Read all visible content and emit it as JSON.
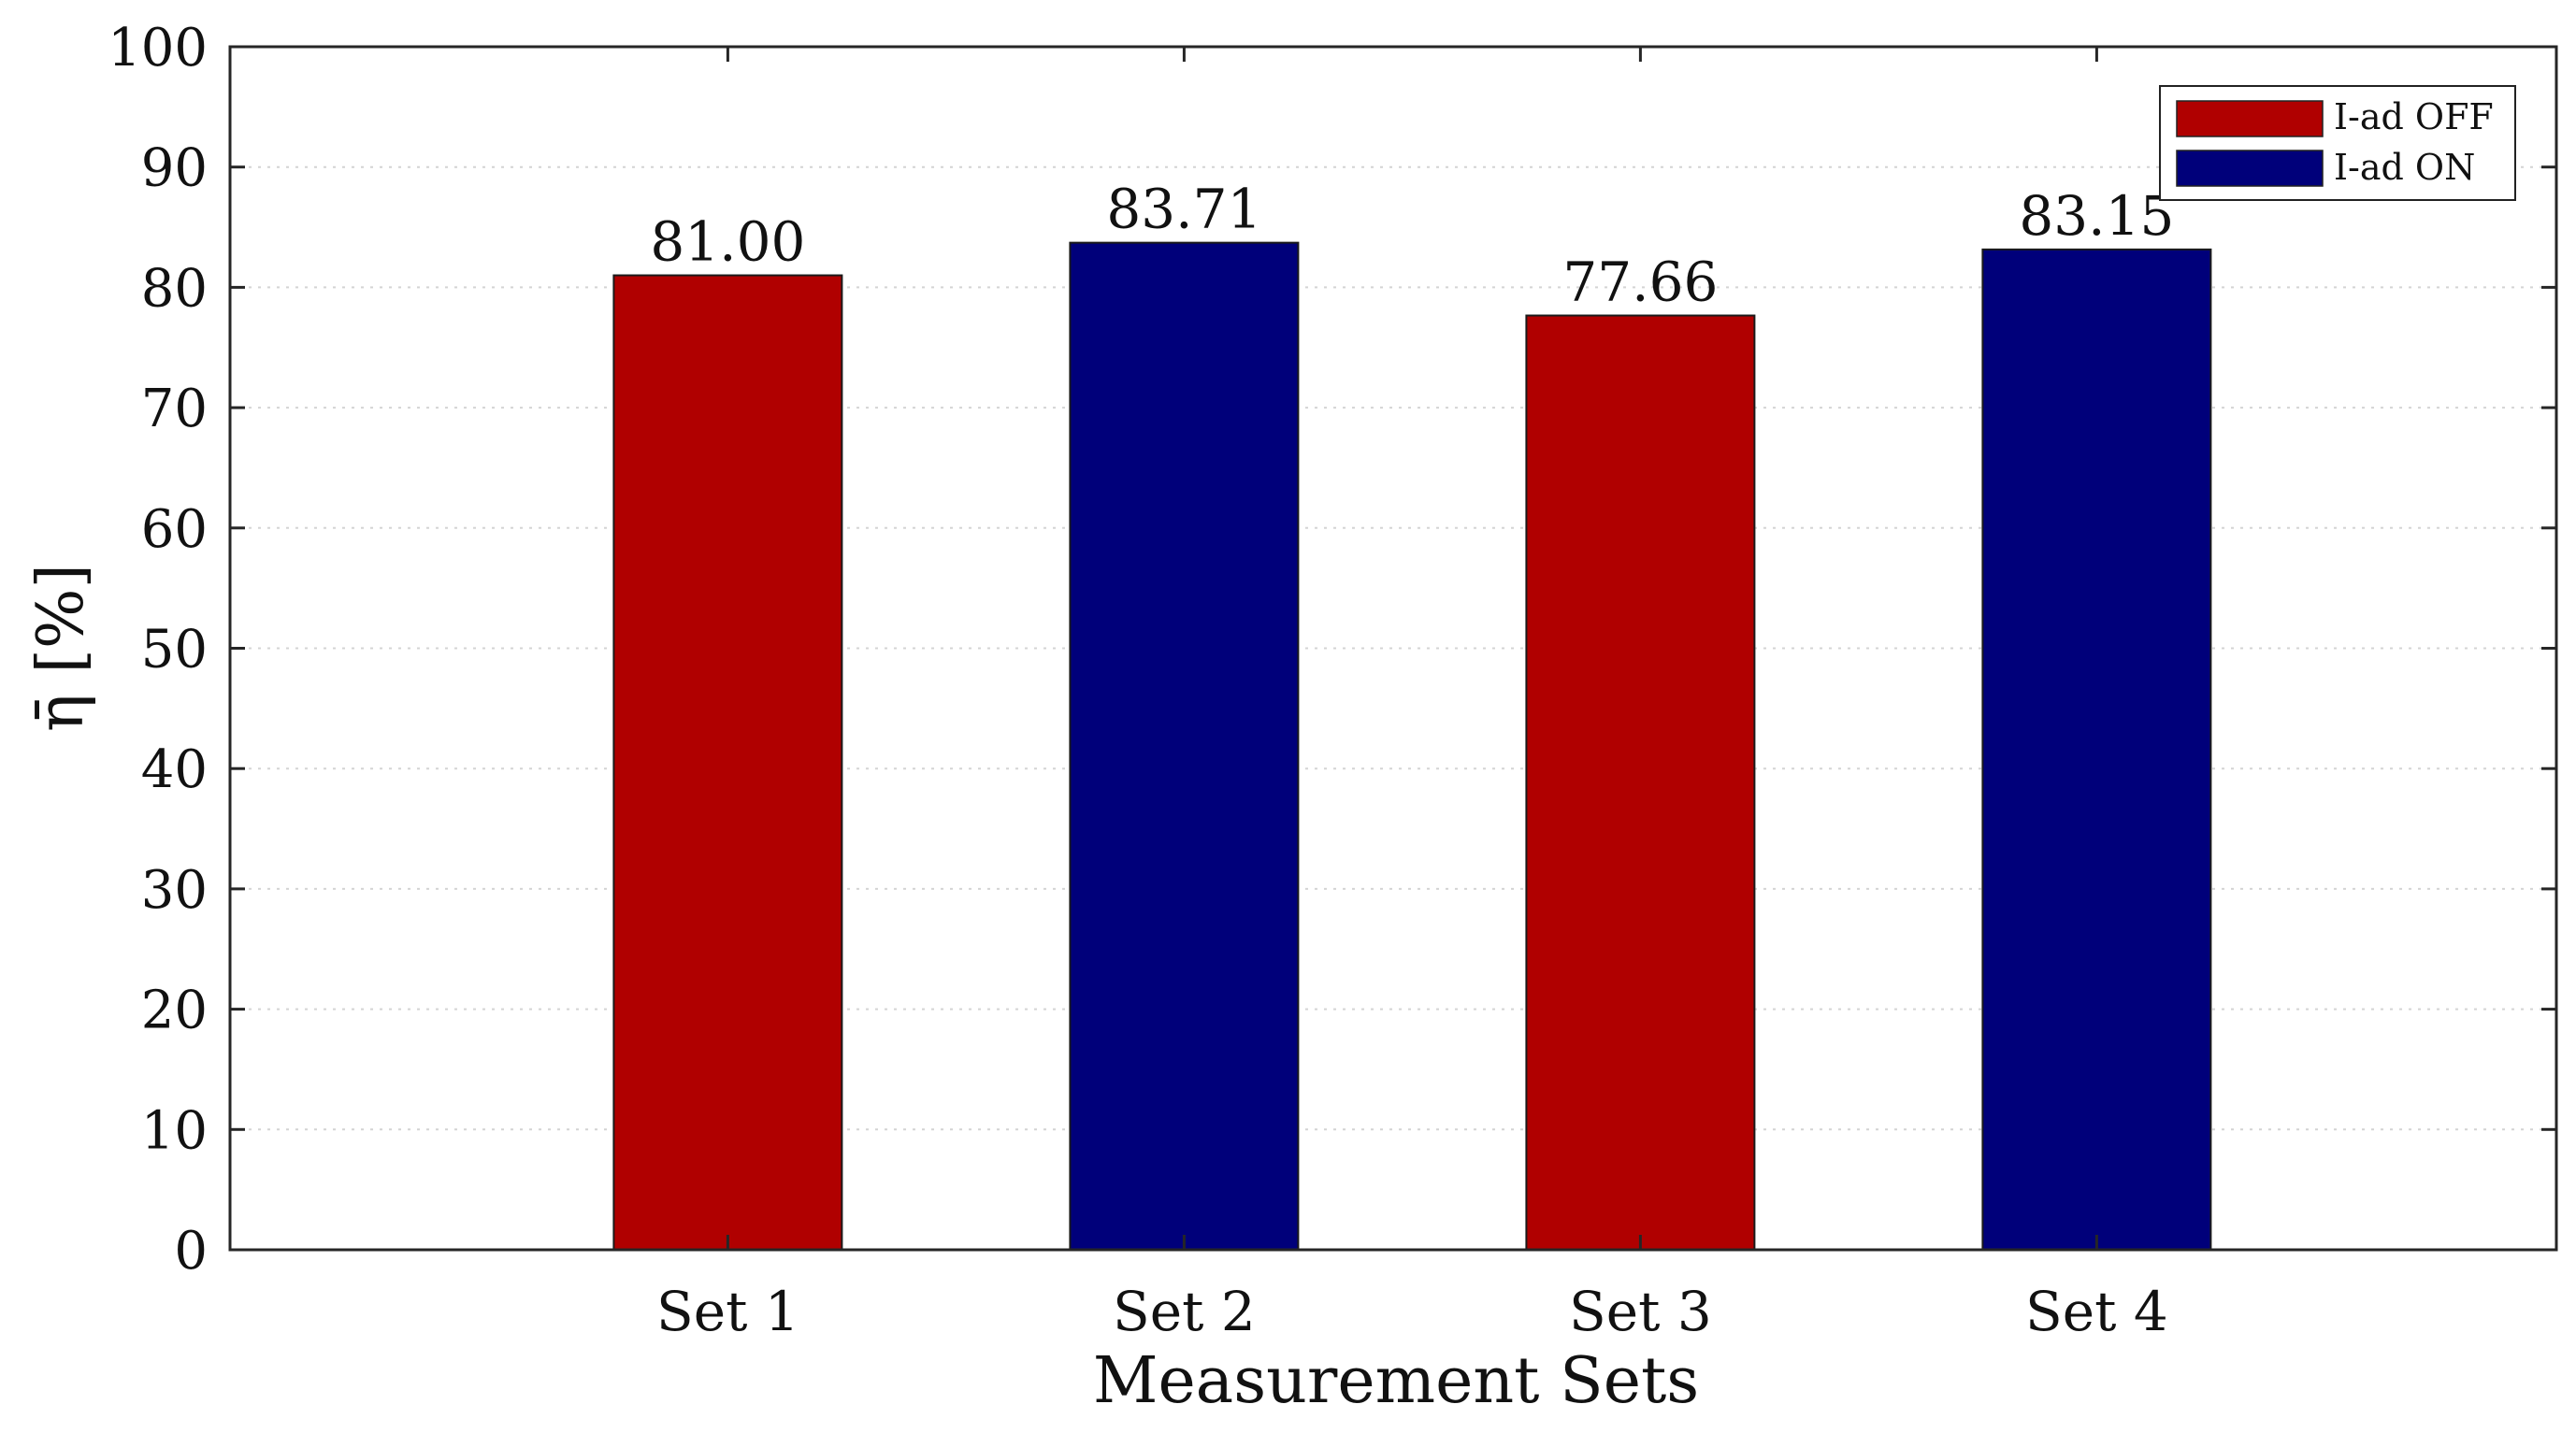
{
  "chart_data": {
    "type": "bar",
    "title": "",
    "xlabel": "Measurement Sets",
    "ylabel": "η̄ [%]",
    "ylim": [
      0,
      100
    ],
    "yticks": [
      0,
      10,
      20,
      30,
      40,
      50,
      60,
      70,
      80,
      90,
      100
    ],
    "categories": [
      "Set 1",
      "Set 2",
      "Set 3",
      "Set 4"
    ],
    "values": [
      81.0,
      83.71,
      77.66,
      83.15
    ],
    "value_labels": [
      "81.00",
      "83.71",
      "77.66",
      "83.15"
    ],
    "bar_series": [
      "I-ad OFF",
      "I-ad ON",
      "I-ad OFF",
      "I-ad ON"
    ],
    "series": [
      {
        "name": "I-ad OFF",
        "color": "#b00000"
      },
      {
        "name": "I-ad ON",
        "color": "#00007a"
      }
    ],
    "grid": "horizontal dotted",
    "legend_position": "top-right"
  }
}
